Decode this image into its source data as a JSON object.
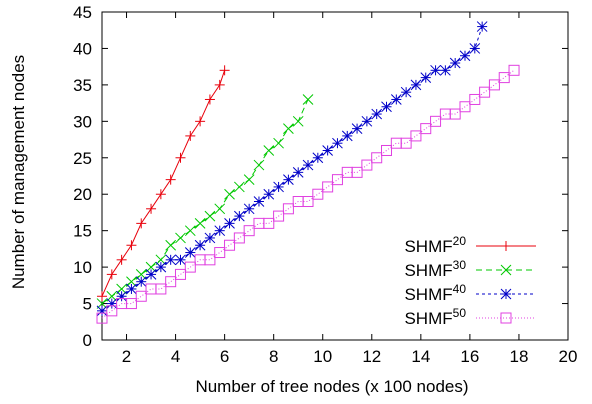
{
  "chart_data": {
    "type": "line",
    "title": "",
    "xlabel": "Number of tree nodes (x 100 nodes)",
    "ylabel": "Number of management nodes",
    "xlim": [
      1,
      20
    ],
    "ylim": [
      0,
      45
    ],
    "x_ticks": [
      "2",
      "4",
      "6",
      "8",
      "10",
      "12",
      "14",
      "16",
      "18",
      "20"
    ],
    "x_tick_values": [
      2,
      4,
      6,
      8,
      10,
      12,
      14,
      16,
      18,
      20
    ],
    "y_ticks": [
      "0",
      "5",
      "10",
      "15",
      "20",
      "25",
      "30",
      "35",
      "40",
      "45"
    ],
    "y_tick_values": [
      0,
      5,
      10,
      15,
      20,
      25,
      30,
      35,
      40,
      45
    ],
    "grid": false,
    "legend_position": "bottom-right",
    "series": [
      {
        "name": "SHMF",
        "name_sup": "20",
        "color": "#e8000b",
        "dash": "",
        "marker": "plus",
        "x": [
          1.0,
          1.4,
          1.8,
          2.2,
          2.6,
          3.0,
          3.4,
          3.8,
          4.2,
          4.6,
          5.0,
          5.4,
          5.8,
          6.0
        ],
        "y": [
          6,
          9,
          11,
          13,
          16,
          18,
          20,
          22,
          25,
          28,
          30,
          33,
          35,
          37
        ]
      },
      {
        "name": "SHMF",
        "name_sup": "30",
        "color": "#00c800",
        "dash": "6,4",
        "marker": "x",
        "x": [
          1.0,
          1.4,
          1.8,
          2.2,
          2.6,
          3.0,
          3.4,
          3.8,
          4.2,
          4.6,
          5.0,
          5.4,
          5.8,
          6.2,
          6.6,
          7.0,
          7.4,
          7.8,
          8.2,
          8.6,
          9.0,
          9.4
        ],
        "y": [
          5,
          6,
          7,
          8,
          9,
          10,
          11,
          13,
          14,
          15,
          16,
          17,
          18,
          20,
          21,
          22,
          24,
          26,
          27,
          29,
          30,
          33
        ]
      },
      {
        "name": "SHMF",
        "name_sup": "40",
        "color": "#0000c8",
        "dash": "3,3",
        "marker": "star",
        "x": [
          1.0,
          1.4,
          1.8,
          2.2,
          2.6,
          3.0,
          3.4,
          3.8,
          4.2,
          4.6,
          5.0,
          5.4,
          5.8,
          6.2,
          6.6,
          7.0,
          7.4,
          7.8,
          8.2,
          8.6,
          9.0,
          9.4,
          9.8,
          10.2,
          10.6,
          11.0,
          11.4,
          11.8,
          12.2,
          12.6,
          13.0,
          13.4,
          13.8,
          14.2,
          14.6,
          15.0,
          15.4,
          15.8,
          16.2,
          16.5
        ],
        "y": [
          4,
          5,
          6,
          7,
          8,
          9,
          10,
          11,
          11,
          12,
          13,
          14,
          15,
          16,
          17,
          18,
          19,
          20,
          21,
          22,
          23,
          24,
          25,
          26,
          27,
          28,
          29,
          30,
          31,
          32,
          33,
          34,
          35,
          36,
          37,
          37,
          38,
          39,
          40,
          43
        ]
      },
      {
        "name": "SHMF",
        "name_sup": "50",
        "color": "#e040e0",
        "dash": "1,2",
        "marker": "square",
        "x": [
          1.0,
          1.4,
          1.8,
          2.2,
          2.6,
          3.0,
          3.4,
          3.8,
          4.2,
          4.6,
          5.0,
          5.4,
          5.8,
          6.2,
          6.6,
          7.0,
          7.4,
          7.8,
          8.2,
          8.6,
          9.0,
          9.4,
          9.8,
          10.2,
          10.6,
          11.0,
          11.4,
          11.8,
          12.2,
          12.6,
          13.0,
          13.4,
          13.8,
          14.2,
          14.6,
          15.0,
          15.4,
          15.8,
          16.2,
          16.6,
          17.0,
          17.4,
          17.8
        ],
        "y": [
          3,
          4,
          5,
          5,
          6,
          7,
          7,
          8,
          9,
          10,
          11,
          11,
          12,
          13,
          14,
          15,
          16,
          16,
          17,
          18,
          19,
          19,
          20,
          21,
          22,
          23,
          23,
          24,
          25,
          26,
          27,
          27,
          28,
          29,
          30,
          31,
          31,
          32,
          33,
          34,
          35,
          36,
          37
        ]
      }
    ]
  }
}
